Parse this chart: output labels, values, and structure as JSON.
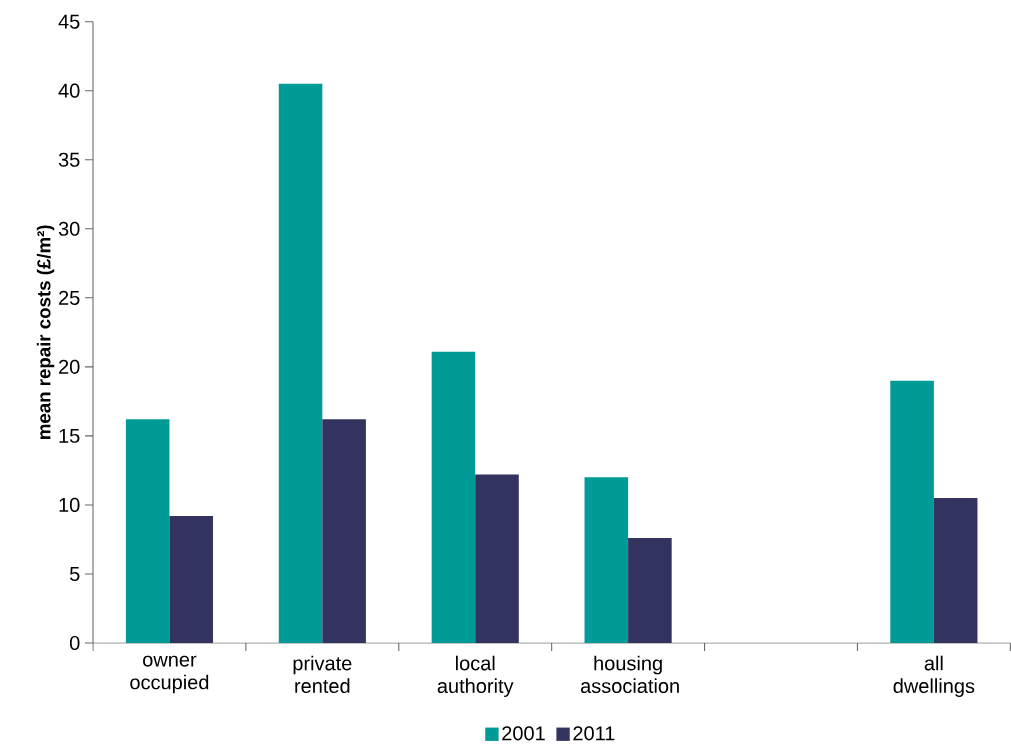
{
  "chart_data": {
    "type": "bar",
    "ylabel": "mean repair costs (£/m²)",
    "categories": [
      "owner occupied",
      "private rented",
      "local authority",
      "housing association",
      null,
      "all dwellings"
    ],
    "series": [
      {
        "name": "2001",
        "color": "#009b96",
        "values": [
          16.2,
          40.5,
          21.1,
          12.0,
          null,
          19.0
        ]
      },
      {
        "name": "2011",
        "color": "#333360",
        "values": [
          9.2,
          16.2,
          12.2,
          7.6,
          null,
          10.5
        ]
      }
    ],
    "ylim": [
      0,
      45
    ],
    "yticks": [
      0,
      5,
      10,
      15,
      20,
      25,
      30,
      35,
      40,
      45
    ],
    "legend": "bottom"
  }
}
